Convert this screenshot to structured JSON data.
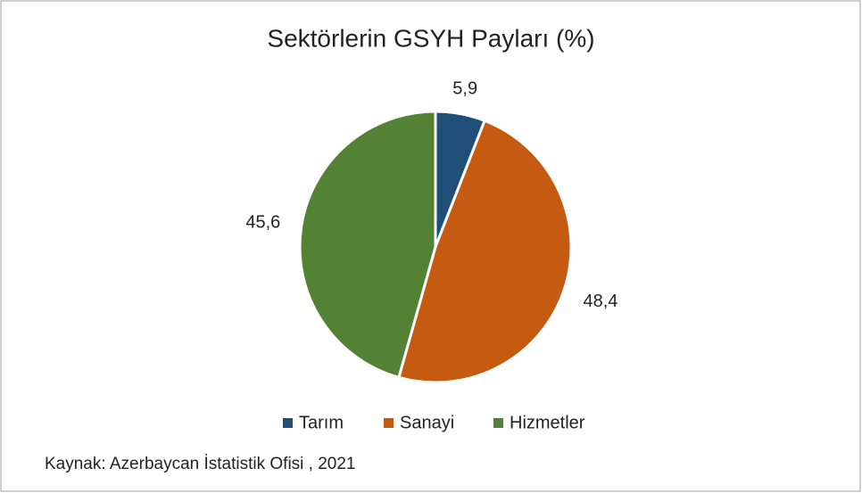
{
  "chart_data": {
    "type": "pie",
    "title": "Sektörlerin GSYH Payları (%)",
    "categories": [
      "Tarım",
      "Sanayi",
      "Hizmetler"
    ],
    "values": [
      5.9,
      48.4,
      45.6
    ],
    "value_labels": [
      "5,9",
      "48,4",
      "45,6"
    ],
    "colors": [
      "#1f4e79",
      "#c55a11",
      "#548235"
    ],
    "legend": "bottom",
    "source": "Kaynak: Azerbaycan İstatistik Ofisi , 2021"
  }
}
